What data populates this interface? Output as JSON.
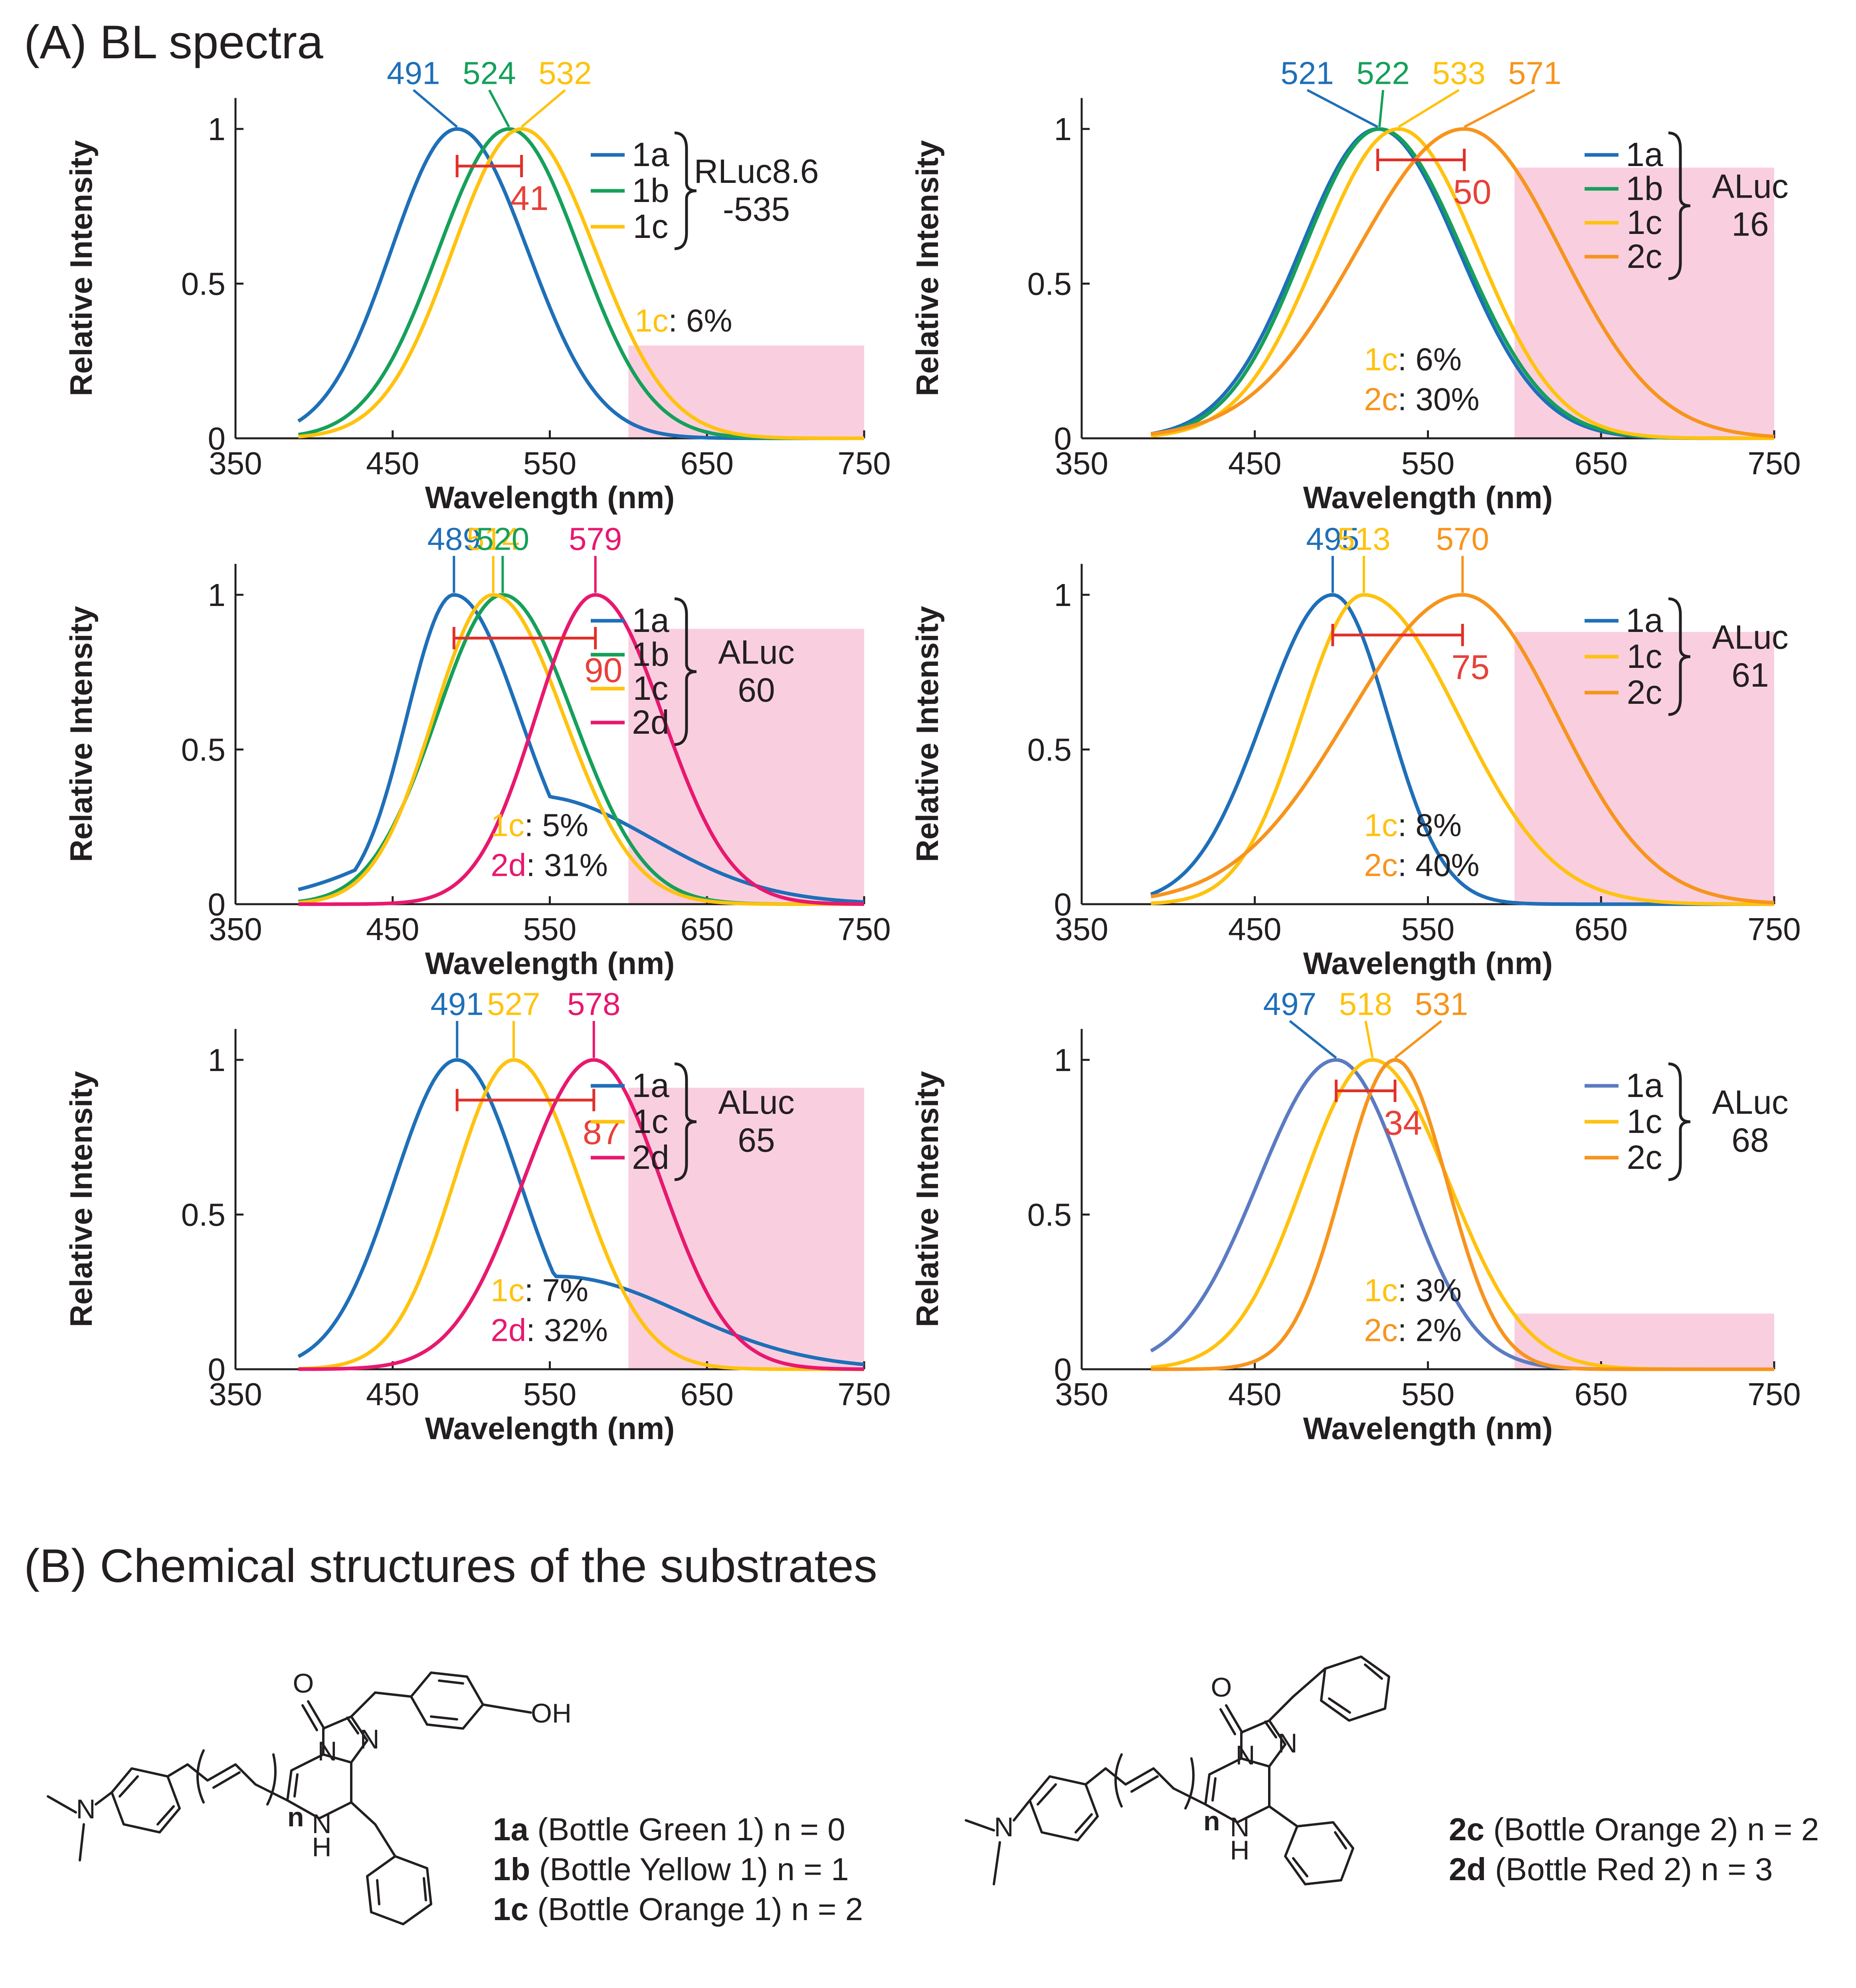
{
  "section_a_title": "(A) BL spectra",
  "section_b_title": "(B) Chemical structures of the substrates",
  "colors": {
    "1a": "#1f6fb8",
    "1a_alt": "#5b7bc2",
    "1b": "#16a05a",
    "1c": "#ffc20e",
    "2c": "#f7941d",
    "2d": "#e8186f",
    "bracket": "#e0302a",
    "width_label": "#e8403a",
    "shade": "#f9cfe0",
    "text": "#231f20"
  },
  "chart_data": [
    {
      "type": "line",
      "enzyme": [
        "RLuc8.6",
        "-535"
      ],
      "xlabel": "Wavelength (nm)",
      "ylabel": "Relative Intensity",
      "xlim": [
        350,
        750
      ],
      "ylim": [
        0,
        1.1
      ],
      "xticks": [
        "350",
        "450",
        "550",
        "650",
        "750"
      ],
      "yticks": [
        "0",
        "0.5",
        "1"
      ],
      "series": [
        {
          "name": "1a",
          "color_key": "1a",
          "peak": 491,
          "width_left": 42,
          "width_right": 45
        },
        {
          "name": "1b",
          "color_key": "1b",
          "peak": 524,
          "width_left": 45,
          "width_right": 45
        },
        {
          "name": "1c",
          "color_key": "1c",
          "peak": 532,
          "width_left": 44,
          "width_right": 47
        }
      ],
      "peak_labels": [
        {
          "text": "491",
          "color_key": "1a",
          "peak": 491
        },
        {
          "text": "524",
          "color_key": "1b",
          "peak": 524
        },
        {
          "text": "532",
          "color_key": "1c",
          "peak": 532
        }
      ],
      "shift": {
        "from": 491,
        "to": 532,
        "label": "41",
        "y": 0.88
      },
      "far_red_region": {
        "x_start": 600,
        "x_end": 750,
        "height": 0.3
      },
      "percents": [
        {
          "substrate": "1c",
          "color_key": "1c",
          "value": ": 6%"
        }
      ]
    },
    {
      "type": "line",
      "enzyme": [
        "ALuc",
        "16"
      ],
      "xlabel": "Wavelength (nm)",
      "ylabel": "Relative Intensity",
      "xlim": [
        350,
        750
      ],
      "ylim": [
        0,
        1.1
      ],
      "xticks": [
        "350",
        "450",
        "550",
        "650",
        "750"
      ],
      "yticks": [
        "0",
        "0.5",
        "1"
      ],
      "series": [
        {
          "name": "1a",
          "color_key": "1a",
          "peak": 521,
          "width_left": 45,
          "width_right": 47
        },
        {
          "name": "1b",
          "color_key": "1b",
          "peak": 522,
          "width_left": 44,
          "width_right": 48
        },
        {
          "name": "1c",
          "color_key": "1c",
          "peak": 533,
          "width_left": 46,
          "width_right": 46
        },
        {
          "name": "2c",
          "color_key": "2c",
          "peak": 571,
          "width_left": 62,
          "width_right": 56
        }
      ],
      "peak_labels": [
        {
          "text": "521",
          "color_key": "1a",
          "peak": 521
        },
        {
          "text": "522",
          "color_key": "1b",
          "peak": 522
        },
        {
          "text": "533",
          "color_key": "1c",
          "peak": 533
        },
        {
          "text": "571",
          "color_key": "2c",
          "peak": 571
        }
      ],
      "shift": {
        "from": 521,
        "to": 571,
        "label": "50",
        "y": 0.9
      },
      "far_red_region": {
        "x_start": 600,
        "x_end": 750,
        "height": 0.875
      },
      "percents": [
        {
          "substrate": "1c",
          "color_key": "1c",
          "value": ": 6%"
        },
        {
          "substrate": "2c",
          "color_key": "2c",
          "value": ": 30%"
        }
      ]
    },
    {
      "type": "line",
      "enzyme": [
        "ALuc",
        "60"
      ],
      "xlabel": "Wavelength (nm)",
      "ylabel": "Relative Intensity",
      "xlim": [
        350,
        750
      ],
      "ylim": [
        0,
        1.1
      ],
      "xticks": [
        "350",
        "450",
        "550",
        "650",
        "750"
      ],
      "yticks": [
        "0",
        "0.5",
        "1"
      ],
      "series": [
        {
          "name": "1a",
          "color_key": "1a",
          "peak": 489,
          "width_left": 30,
          "width_right": 42,
          "tail_amp": 0.35,
          "tail_center": 540,
          "tail_width": 75
        },
        {
          "name": "1b",
          "color_key": "1b",
          "peak": 520,
          "width_left": 42,
          "width_right": 45
        },
        {
          "name": "1c",
          "color_key": "1c",
          "peak": 514,
          "width_left": 38,
          "width_right": 45
        },
        {
          "name": "2d",
          "color_key": "2d",
          "peak": 579,
          "width_left": 38,
          "width_right": 43
        }
      ],
      "peak_labels": [
        {
          "text": "489",
          "color_key": "1a",
          "peak": 489
        },
        {
          "text": "514",
          "color_key": "1c",
          "peak": 514
        },
        {
          "text": "520",
          "color_key": "1b",
          "peak": 520
        },
        {
          "text": "579",
          "color_key": "2d",
          "peak": 579
        }
      ],
      "shift": {
        "from": 489,
        "to": 579,
        "label": "90",
        "y": 0.86
      },
      "far_red_region": {
        "x_start": 600,
        "x_end": 750,
        "height": 0.89
      },
      "percents": [
        {
          "substrate": "1c",
          "color_key": "1c",
          "value": ": 5%"
        },
        {
          "substrate": "2d",
          "color_key": "2d",
          "value": ": 31%"
        }
      ]
    },
    {
      "type": "line",
      "enzyme": [
        "ALuc",
        "61"
      ],
      "xlabel": "Wavelength (nm)",
      "ylabel": "Relative Intensity",
      "xlim": [
        350,
        750
      ],
      "ylim": [
        0,
        1.1
      ],
      "xticks": [
        "350",
        "450",
        "550",
        "650",
        "750"
      ],
      "yticks": [
        "0",
        "0.5",
        "1"
      ],
      "series": [
        {
          "name": "1a",
          "color_key": "1a",
          "peak": 495,
          "width_left": 40,
          "width_right": 32
        },
        {
          "name": "1c",
          "color_key": "1c",
          "peak": 513,
          "width_left": 36,
          "width_right": 55
        },
        {
          "name": "2c",
          "color_key": "2c",
          "peak": 570,
          "width_left": 66,
          "width_right": 55
        }
      ],
      "peak_labels": [
        {
          "text": "495",
          "color_key": "1a",
          "peak": 495
        },
        {
          "text": "513",
          "color_key": "1c",
          "peak": 513
        },
        {
          "text": "570",
          "color_key": "2c",
          "peak": 570
        }
      ],
      "shift": {
        "from": 495,
        "to": 570,
        "label": "75",
        "y": 0.87
      },
      "far_red_region": {
        "x_start": 600,
        "x_end": 750,
        "height": 0.88
      },
      "percents": [
        {
          "substrate": "1c",
          "color_key": "1c",
          "value": ": 8%"
        },
        {
          "substrate": "2c",
          "color_key": "2c",
          "value": ": 40%"
        }
      ]
    },
    {
      "type": "line",
      "enzyme": [
        "ALuc",
        "65"
      ],
      "xlabel": "Wavelength (nm)",
      "ylabel": "Relative Intensity",
      "xlim": [
        350,
        750
      ],
      "ylim": [
        0,
        1.1
      ],
      "xticks": [
        "350",
        "450",
        "550",
        "650",
        "750"
      ],
      "yticks": [
        "0",
        "0.5",
        "1"
      ],
      "series": [
        {
          "name": "1a",
          "color_key": "1a",
          "peak": 491,
          "width_left": 40,
          "width_right": 40,
          "tail_amp": 0.3,
          "tail_center": 555,
          "tail_width": 80
        },
        {
          "name": "1c",
          "color_key": "1c",
          "peak": 527,
          "width_left": 38,
          "width_right": 42
        },
        {
          "name": "2d",
          "color_key": "2d",
          "peak": 578,
          "width_left": 45,
          "width_right": 43
        }
      ],
      "peak_labels": [
        {
          "text": "491",
          "color_key": "1a",
          "peak": 491
        },
        {
          "text": "527",
          "color_key": "1c",
          "peak": 527
        },
        {
          "text": "578",
          "color_key": "2d",
          "peak": 578
        }
      ],
      "shift": {
        "from": 491,
        "to": 578,
        "label": "87",
        "y": 0.87
      },
      "far_red_region": {
        "x_start": 600,
        "x_end": 750,
        "height": 0.91
      },
      "percents": [
        {
          "substrate": "1c",
          "color_key": "1c",
          "value": ": 7%"
        },
        {
          "substrate": "2d",
          "color_key": "2d",
          "value": ": 32%"
        }
      ]
    },
    {
      "type": "line",
      "enzyme": [
        "ALuc",
        "68"
      ],
      "xlabel": "Wavelength (nm)",
      "ylabel": "Relative Intensity",
      "xlim": [
        350,
        750
      ],
      "ylim": [
        0,
        1.1
      ],
      "xticks": [
        "350",
        "450",
        "550",
        "650",
        "750"
      ],
      "yticks": [
        "0",
        "0.5",
        "1"
      ],
      "series": [
        {
          "name": "1a",
          "color_key": "1a_alt",
          "peak": 497,
          "width_left": 45,
          "width_right": 40
        },
        {
          "name": "1c",
          "color_key": "1c",
          "peak": 518,
          "width_left": 40,
          "width_right": 44
        },
        {
          "name": "2c",
          "color_key": "2c",
          "peak": 531,
          "width_left": 30,
          "width_right": 30
        }
      ],
      "peak_labels": [
        {
          "text": "497",
          "color_key": "1a",
          "peak": 497
        },
        {
          "text": "518",
          "color_key": "1c",
          "peak": 518
        },
        {
          "text": "531",
          "color_key": "2c",
          "peak": 531
        }
      ],
      "shift": {
        "from": 497,
        "to": 531,
        "label": "34",
        "y": 0.9
      },
      "far_red_region": {
        "x_start": 600,
        "x_end": 750,
        "height": 0.18
      },
      "percents": [
        {
          "substrate": "1c",
          "color_key": "1c",
          "value": ": 3%"
        },
        {
          "substrate": "2c",
          "color_key": "2c",
          "value": ": 2%"
        }
      ]
    }
  ],
  "structures": {
    "atoms": {
      "oxygen": "O",
      "nitrogen": "N",
      "hydroxyl": "OH",
      "nh_hydrogen": "H",
      "repeat_index": "n"
    },
    "left_captions": [
      {
        "id": "1a",
        "rest": " (Bottle Green 1) n = 0"
      },
      {
        "id": "1b",
        "rest": " (Bottle Yellow 1) n = 1"
      },
      {
        "id": "1c",
        "rest": " (Bottle Orange 1) n = 2"
      }
    ],
    "right_captions": [
      {
        "id": "2c",
        "rest": " (Bottle Orange 2) n = 2"
      },
      {
        "id": "2d",
        "rest": " (Bottle Red 2) n = 3"
      }
    ]
  }
}
